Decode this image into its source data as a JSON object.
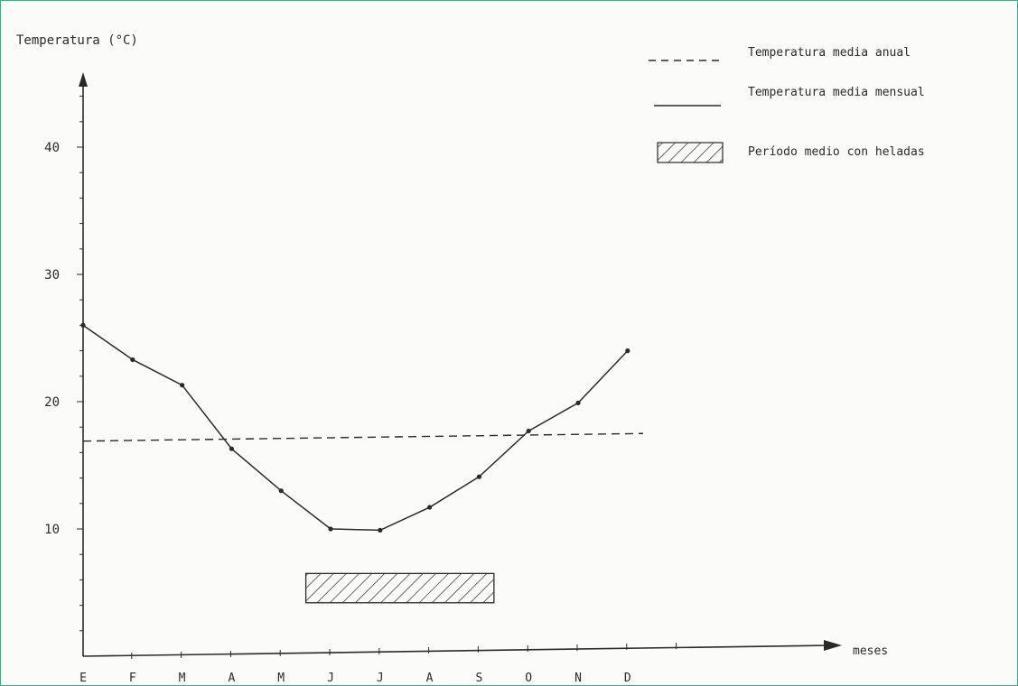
{
  "chart_data": {
    "type": "line",
    "ylabel": "Temperatura (°C)",
    "xlabel": "meses",
    "categories": [
      "E",
      "F",
      "M",
      "A",
      "M",
      "J",
      "J",
      "A",
      "S",
      "O",
      "N",
      "D"
    ],
    "yticks": [
      10,
      20,
      30,
      40
    ],
    "ylim": [
      0,
      46
    ],
    "series": [
      {
        "name": "Temperatura media mensual",
        "style": "solid",
        "values": [
          26.0,
          23.3,
          21.3,
          16.3,
          13.0,
          10.0,
          9.9,
          11.7,
          14.1,
          17.7,
          19.9,
          24.0
        ]
      },
      {
        "name": "Temperatura media anual",
        "style": "dashed",
        "values_linear": {
          "start": 16.9,
          "end": 17.5
        }
      }
    ],
    "frost_period": {
      "name": "Período medio con heladas",
      "from_month": 5.5,
      "to_month": 9.3,
      "y_low": 4.2,
      "y_high": 6.5
    },
    "legend": {
      "position": "top-right",
      "entries": [
        {
          "label": "Temperatura media anual",
          "marker": "dashed"
        },
        {
          "label": "Temperatura media mensual",
          "marker": "solid"
        },
        {
          "label": "Período medio con heladas",
          "marker": "hatched"
        }
      ]
    },
    "grid": false,
    "colors": {
      "ink": "#2a2a2a",
      "background": "#fbfbf9",
      "frame": "#2fb38c"
    }
  }
}
